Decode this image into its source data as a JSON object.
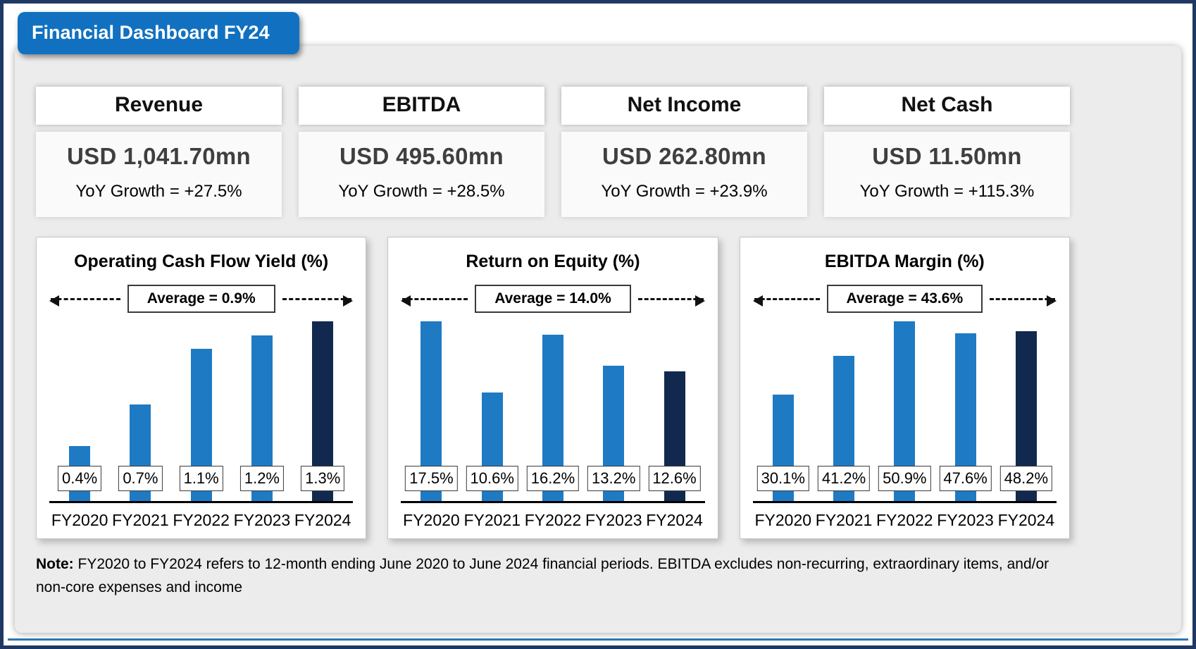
{
  "title": "Financial Dashboard FY24",
  "colors": {
    "bar_primary": "#1F7AC4",
    "bar_final": "#12294F",
    "tab_blue": "#1171C0",
    "outer_border_navy": "#203864",
    "bottom_accent_blue": "#2E75B6",
    "panel_gray": "#ECECEC"
  },
  "kpis": [
    {
      "label": "Revenue",
      "value": "USD 1,041.70mn",
      "yoy": "YoY Growth = +27.5%"
    },
    {
      "label": "EBITDA",
      "value": "USD 495.60mn",
      "yoy": "YoY Growth = +28.5%"
    },
    {
      "label": "Net Income",
      "value": "USD 262.80mn",
      "yoy": "YoY Growth = +23.9%"
    },
    {
      "label": "Net Cash",
      "value": "USD 11.50mn",
      "yoy": "YoY Growth = +115.3%"
    }
  ],
  "chart_data": [
    {
      "type": "bar",
      "title": "Operating Cash Flow Yield (%)",
      "average_label": "Average = 0.9%",
      "categories": [
        "FY2020",
        "FY2021",
        "FY2022",
        "FY2023",
        "FY2024"
      ],
      "values": [
        0.4,
        0.7,
        1.1,
        1.2,
        1.3
      ],
      "value_labels": [
        "0.4%",
        "0.7%",
        "1.1%",
        "1.2%",
        "1.3%"
      ],
      "ylim": [
        0,
        1.3
      ],
      "grid": false,
      "legend": false,
      "highlight_last": true
    },
    {
      "type": "bar",
      "title": "Return on Equity (%)",
      "average_label": "Average = 14.0%",
      "categories": [
        "FY2020",
        "FY2021",
        "FY2022",
        "FY2023",
        "FY2024"
      ],
      "values": [
        17.5,
        10.6,
        16.2,
        13.2,
        12.6
      ],
      "value_labels": [
        "17.5%",
        "10.6%",
        "16.2%",
        "13.2%",
        "12.6%"
      ],
      "ylim": [
        0,
        17.5
      ],
      "grid": false,
      "legend": false,
      "highlight_last": true
    },
    {
      "type": "bar",
      "title": "EBITDA Margin (%)",
      "average_label": "Average = 43.6%",
      "categories": [
        "FY2020",
        "FY2021",
        "FY2022",
        "FY2023",
        "FY2024"
      ],
      "values": [
        30.1,
        41.2,
        50.9,
        47.6,
        48.2
      ],
      "value_labels": [
        "30.1%",
        "41.2%",
        "50.9%",
        "47.6%",
        "48.2%"
      ],
      "ylim": [
        0,
        50.9
      ],
      "grid": false,
      "legend": false,
      "highlight_last": true
    }
  ],
  "note": {
    "prefix": "Note:",
    "text": " FY2020 to FY2024 refers to 12-month ending June 2020 to June 2024 financial periods. EBITDA excludes non-recurring, extraordinary items, and/or non-core expenses and income"
  }
}
